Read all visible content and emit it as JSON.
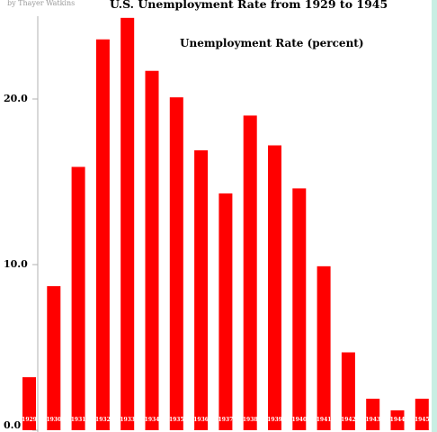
{
  "chart_data": {
    "type": "bar",
    "title": "U.S. Unemployment Rate from 1929 to 1945",
    "subtitle": "Unemployment Rate (percent)",
    "credit": "by Thayer Watkins",
    "categories": [
      "1929",
      "1930",
      "1931",
      "1932",
      "1933",
      "1934",
      "1935",
      "1936",
      "1937",
      "1938",
      "1939",
      "1940",
      "1941",
      "1942",
      "1943",
      "1944",
      "1945"
    ],
    "values": [
      3.2,
      8.7,
      15.9,
      23.6,
      24.9,
      21.7,
      20.1,
      16.9,
      14.3,
      19.0,
      17.2,
      14.6,
      9.9,
      4.7,
      1.9,
      1.2,
      1.9
    ],
    "ylim": [
      0,
      25
    ],
    "yticks": [
      {
        "value": 0,
        "label": "0.0"
      },
      {
        "value": 10,
        "label": "10.0"
      },
      {
        "value": 20,
        "label": "20.0"
      }
    ],
    "xlabel": "",
    "ylabel": "",
    "bar_color": "#ff0000",
    "grid": false,
    "legend": "none"
  }
}
